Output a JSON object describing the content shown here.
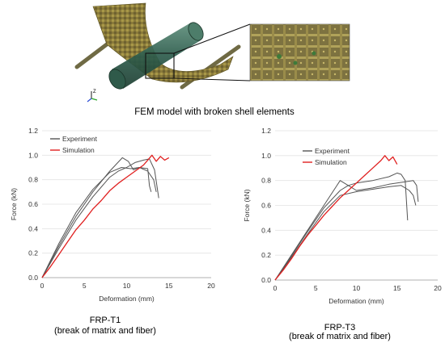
{
  "figure": {
    "fem_caption": "FEM model with broken shell elements",
    "axis_triad_label": "Z"
  },
  "chart_data": [
    {
      "type": "line",
      "xlabel": "Deformation (mm)",
      "ylabel": "Force (kN)",
      "xlim": [
        0,
        20
      ],
      "ylim": [
        0,
        1.2
      ],
      "xticks": [
        0,
        5,
        10,
        15,
        20
      ],
      "yticks": [
        0.0,
        0.2,
        0.4,
        0.6,
        0.8,
        1.0,
        1.2
      ],
      "ytick_labels": [
        "0.0",
        "0.2",
        "0.4",
        "0.6",
        "0.8",
        "1.0",
        "1.2"
      ],
      "grid": "horizontal",
      "legend": "top-left",
      "caption_line1": "FRP-T1",
      "caption_line2": "(break of matrix and fiber)",
      "series": [
        {
          "name": "Experiment",
          "color": "#555555",
          "points": [
            [
              0,
              0
            ],
            [
              2,
              0.26
            ],
            [
              4,
              0.5
            ],
            [
              6,
              0.7
            ],
            [
              8,
              0.87
            ],
            [
              9.5,
              0.98
            ],
            [
              10.2,
              0.95
            ],
            [
              10.8,
              0.88
            ],
            [
              11.5,
              0.9
            ],
            [
              12.5,
              0.87
            ],
            [
              13.2,
              0.8
            ],
            [
              13.5,
              0.7
            ]
          ]
        },
        {
          "name": "",
          "color": "#555555",
          "points": [
            [
              0,
              0
            ],
            [
              2,
              0.24
            ],
            [
              4,
              0.47
            ],
            [
              6,
              0.66
            ],
            [
              8,
              0.82
            ],
            [
              9,
              0.87
            ],
            [
              10,
              0.9
            ],
            [
              11,
              0.94
            ],
            [
              12,
              0.96
            ],
            [
              12.7,
              0.97
            ],
            [
              13.3,
              0.88
            ],
            [
              13.8,
              0.65
            ]
          ]
        },
        {
          "name": "",
          "color": "#555555",
          "points": [
            [
              0,
              0
            ],
            [
              2,
              0.28
            ],
            [
              4,
              0.53
            ],
            [
              6,
              0.72
            ],
            [
              8,
              0.86
            ],
            [
              9.4,
              0.9
            ],
            [
              10.5,
              0.89
            ],
            [
              11.5,
              0.9
            ],
            [
              12.5,
              0.89
            ],
            [
              12.7,
              0.75
            ],
            [
              12.9,
              0.7
            ]
          ]
        },
        {
          "name": "Simulation",
          "color": "#e02020",
          "points": [
            [
              0,
              0
            ],
            [
              1,
              0.09
            ],
            [
              2,
              0.19
            ],
            [
              3,
              0.29
            ],
            [
              4,
              0.39
            ],
            [
              5,
              0.47
            ],
            [
              6,
              0.56
            ],
            [
              7,
              0.63
            ],
            [
              8,
              0.71
            ],
            [
              9,
              0.77
            ],
            [
              10,
              0.82
            ],
            [
              11,
              0.87
            ],
            [
              12,
              0.92
            ],
            [
              12.5,
              0.96
            ],
            [
              13,
              1.0
            ],
            [
              13.5,
              0.95
            ],
            [
              14,
              0.99
            ],
            [
              14.5,
              0.96
            ],
            [
              15,
              0.98
            ]
          ]
        }
      ]
    },
    {
      "type": "line",
      "xlabel": "Deformation (mm)",
      "ylabel": "Force (kN)",
      "xlim": [
        0,
        20
      ],
      "ylim": [
        0,
        1.2
      ],
      "xticks": [
        0,
        5,
        10,
        15,
        20
      ],
      "yticks": [
        0.0,
        0.2,
        0.4,
        0.6,
        0.8,
        1.0,
        1.2
      ],
      "ytick_labels": [
        "0.0",
        "0.2",
        "0.4",
        "0.6",
        "0.8",
        "1.0",
        "1.2"
      ],
      "grid": "horizontal",
      "legend": "top-center",
      "caption_line1": "FRP-T3",
      "caption_line2": "(break of matrix and fiber)",
      "series": [
        {
          "name": "Experiment",
          "color": "#555555",
          "points": [
            [
              0,
              0
            ],
            [
              2,
              0.2
            ],
            [
              4,
              0.4
            ],
            [
              6,
              0.6
            ],
            [
              7.5,
              0.75
            ],
            [
              8,
              0.8
            ],
            [
              9,
              0.76
            ],
            [
              10,
              0.78
            ],
            [
              12,
              0.8
            ],
            [
              14,
              0.83
            ],
            [
              15,
              0.86
            ],
            [
              15.5,
              0.85
            ],
            [
              16,
              0.8
            ],
            [
              16.3,
              0.48
            ]
          ]
        },
        {
          "name": "",
          "color": "#555555",
          "points": [
            [
              0,
              0
            ],
            [
              2,
              0.18
            ],
            [
              4,
              0.37
            ],
            [
              6,
              0.55
            ],
            [
              8,
              0.68
            ],
            [
              10,
              0.71
            ],
            [
              12,
              0.73
            ],
            [
              14,
              0.75
            ],
            [
              15.5,
              0.76
            ],
            [
              16.5,
              0.72
            ],
            [
              17,
              0.68
            ],
            [
              17.3,
              0.6
            ]
          ]
        },
        {
          "name": "",
          "color": "#555555",
          "points": [
            [
              0,
              0
            ],
            [
              2,
              0.19
            ],
            [
              4,
              0.39
            ],
            [
              6,
              0.58
            ],
            [
              8,
              0.72
            ],
            [
              9,
              0.76
            ],
            [
              10,
              0.72
            ],
            [
              12,
              0.74
            ],
            [
              14,
              0.77
            ],
            [
              16,
              0.79
            ],
            [
              17,
              0.8
            ],
            [
              17.4,
              0.76
            ],
            [
              17.6,
              0.63
            ]
          ]
        },
        {
          "name": "Simulation",
          "color": "#e02020",
          "points": [
            [
              0,
              0
            ],
            [
              1,
              0.08
            ],
            [
              2,
              0.17
            ],
            [
              3,
              0.27
            ],
            [
              4,
              0.36
            ],
            [
              5,
              0.44
            ],
            [
              6,
              0.52
            ],
            [
              7,
              0.59
            ],
            [
              8,
              0.66
            ],
            [
              9,
              0.72
            ],
            [
              10,
              0.78
            ],
            [
              11,
              0.84
            ],
            [
              12,
              0.9
            ],
            [
              13,
              0.96
            ],
            [
              13.5,
              1.0
            ],
            [
              14,
              0.96
            ],
            [
              14.5,
              0.99
            ],
            [
              15,
              0.93
            ]
          ]
        }
      ]
    }
  ]
}
